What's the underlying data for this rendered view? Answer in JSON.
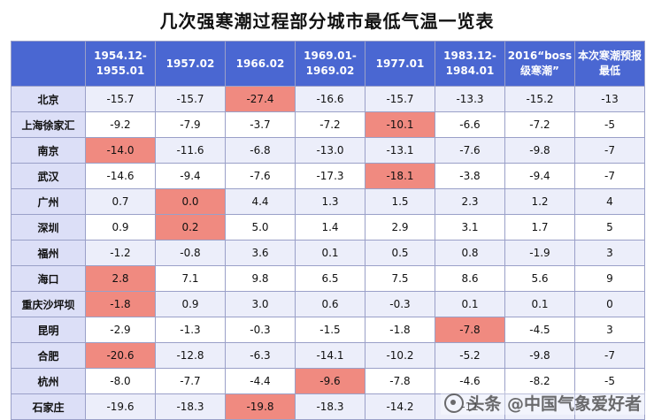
{
  "title": "几次强寒潮过程部分城市最低气温一览表",
  "headers": [
    "",
    "1954.12-1955.01",
    "1957.02",
    "1966.02",
    "1969.01-1969.02",
    "1977.01",
    "1983.12-1984.01",
    "2016“boss级寒潮”",
    "本次寒潮预报最低"
  ],
  "rows": [
    {
      "city": "北京",
      "values": [
        "-15.7",
        "-15.7",
        "-27.4",
        "-16.6",
        "-15.7",
        "-13.3",
        "-15.2",
        "-13"
      ],
      "highlight": [
        2
      ]
    },
    {
      "city": "上海徐家汇",
      "values": [
        "-9.2",
        "-7.9",
        "-3.7",
        "-7.2",
        "-10.1",
        "-6.6",
        "-7.2",
        "-5"
      ],
      "highlight": [
        4
      ]
    },
    {
      "city": "南京",
      "values": [
        "-14.0",
        "-11.6",
        "-6.8",
        "-13.0",
        "-13.1",
        "-7.6",
        "-9.8",
        "-7"
      ],
      "highlight": [
        0
      ]
    },
    {
      "city": "武汉",
      "values": [
        "-14.6",
        "-9.4",
        "-7.6",
        "-17.3",
        "-18.1",
        "-3.8",
        "-9.4",
        "-7"
      ],
      "highlight": [
        4
      ]
    },
    {
      "city": "广州",
      "values": [
        "0.7",
        "0.0",
        "4.4",
        "1.3",
        "1.5",
        "2.3",
        "1.2",
        "4"
      ],
      "highlight": [
        1
      ]
    },
    {
      "city": "深圳",
      "values": [
        "0.9",
        "0.2",
        "5.0",
        "1.4",
        "2.9",
        "3.1",
        "1.7",
        "5"
      ],
      "highlight": [
        1
      ]
    },
    {
      "city": "福州",
      "values": [
        "-1.2",
        "-0.8",
        "3.6",
        "0.1",
        "0.5",
        "0.8",
        "-1.9",
        "3"
      ],
      "highlight": []
    },
    {
      "city": "海口",
      "values": [
        "2.8",
        "7.1",
        "9.8",
        "6.5",
        "7.5",
        "8.6",
        "5.6",
        "9"
      ],
      "highlight": [
        0
      ]
    },
    {
      "city": "重庆沙坪坝",
      "values": [
        "-1.8",
        "0.9",
        "3.0",
        "0.6",
        "-0.3",
        "0.1",
        "0.1",
        "0"
      ],
      "highlight": [
        0
      ]
    },
    {
      "city": "昆明",
      "values": [
        "-2.9",
        "-1.3",
        "-0.3",
        "-1.5",
        "-1.8",
        "-7.8",
        "-4.5",
        "3"
      ],
      "highlight": [
        5
      ]
    },
    {
      "city": "合肥",
      "values": [
        "-20.6",
        "-12.8",
        "-6.3",
        "-14.1",
        "-10.2",
        "-5.2",
        "-9.8",
        "-7"
      ],
      "highlight": [
        0
      ]
    },
    {
      "city": "杭州",
      "values": [
        "-8.0",
        "-7.7",
        "-4.4",
        "-9.6",
        "-7.8",
        "-4.6",
        "-8.2",
        "-5"
      ],
      "highlight": [
        3
      ]
    },
    {
      "city": "石家庄",
      "values": [
        "-19.6",
        "-18.3",
        "-19.8",
        "-18.3",
        "-14.2",
        "-11",
        "",
        ""
      ],
      "highlight": [
        2
      ]
    }
  ],
  "watermark": "头条 @中国气象爱好者",
  "colors": {
    "header_bg": "#4a67d2",
    "highlight": "#f08a80",
    "row_alt": "#eceefa",
    "city_bg": "#dcdff7"
  }
}
